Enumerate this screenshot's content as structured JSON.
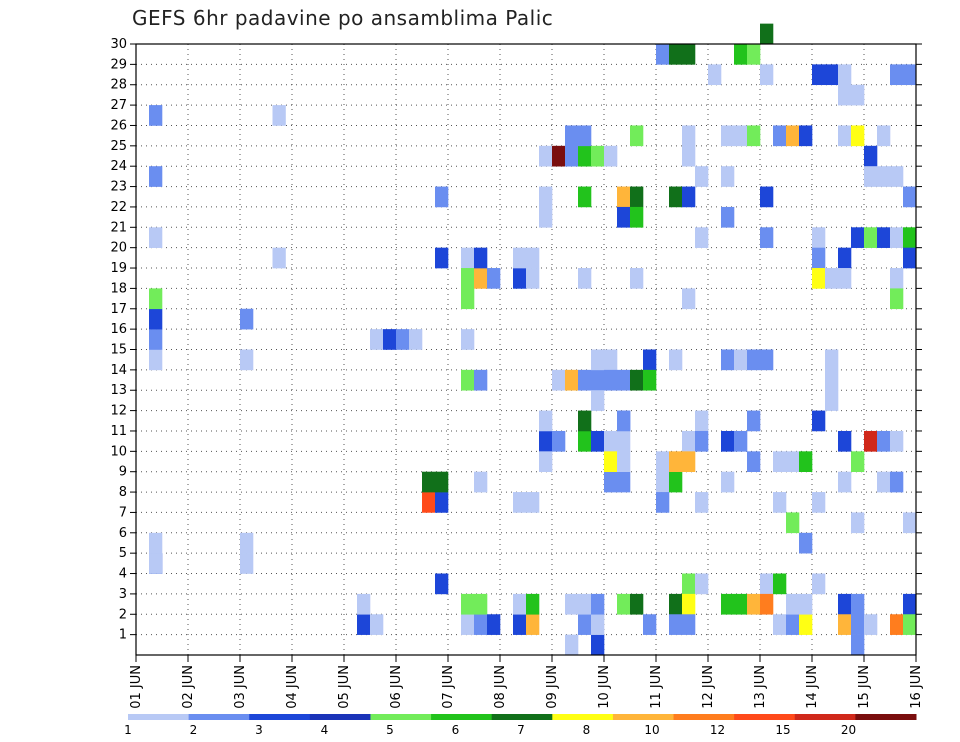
{
  "chart_data": {
    "type": "heatmap",
    "title": "GEFS 6hr padavine po ansamblima Palic",
    "x_tick_labels": [
      "01 JUN",
      "02 JUN",
      "03 JUN",
      "04 JUN",
      "05 JUN",
      "06 JUN",
      "07 JUN",
      "08 JUN",
      "09 JUN",
      "10 JUN",
      "11 JUN",
      "12 JUN",
      "13 JUN",
      "14 JUN",
      "15 JUN",
      "16 JUN"
    ],
    "y_tick_labels": [
      "1",
      "2",
      "3",
      "4",
      "5",
      "6",
      "7",
      "8",
      "9",
      "10",
      "11",
      "12",
      "13",
      "14",
      "15",
      "16",
      "17",
      "18",
      "19",
      "20",
      "21",
      "22",
      "23",
      "24",
      "25",
      "26",
      "27",
      "28",
      "29",
      "30"
    ],
    "xlim": [
      0,
      60
    ],
    "ylim": [
      0,
      30
    ],
    "grid": true,
    "colorbar": {
      "colors": [
        "#b8c9f5",
        "#6a8ef0",
        "#1d46d8",
        "#1a33b8",
        "#72ec5a",
        "#22c31c",
        "#11701a",
        "#ffff14",
        "#ffb53a",
        "#ff7d1e",
        "#ff4a1a",
        "#d0281a",
        "#7a0e0e"
      ],
      "labels": [
        "1",
        "2",
        "3",
        "4",
        "5",
        "6",
        "7",
        "8",
        "10",
        "12",
        "15",
        "20"
      ]
    },
    "cells": [
      [
        1.5,
        4,
        2
      ],
      [
        1.5,
        5,
        0
      ],
      [
        1.5,
        14,
        0
      ],
      [
        1.5,
        15,
        1
      ],
      [
        1.5,
        16,
        2
      ],
      [
        1.5,
        17,
        4
      ],
      [
        1.5,
        20,
        0
      ],
      [
        1.5,
        23,
        1
      ],
      [
        1.5,
        26,
        1
      ],
      [
        1.5,
        4,
        0
      ],
      [
        8.5,
        4,
        0
      ],
      [
        8.5,
        5,
        0
      ],
      [
        8.5,
        14,
        0
      ],
      [
        8.5,
        16,
        1
      ],
      [
        11.0,
        26,
        0
      ],
      [
        11.0,
        19,
        0
      ],
      [
        17.5,
        1,
        2
      ],
      [
        17.5,
        2,
        0
      ],
      [
        18.5,
        1,
        0
      ],
      [
        18.5,
        15,
        0
      ],
      [
        19.5,
        15,
        2
      ],
      [
        20.5,
        15,
        1
      ],
      [
        21.5,
        15,
        0
      ],
      [
        22.5,
        7,
        10
      ],
      [
        22.5,
        8,
        6
      ],
      [
        23.5,
        7,
        2
      ],
      [
        23.5,
        8,
        6
      ],
      [
        23.5,
        3,
        2
      ],
      [
        23.5,
        19,
        2
      ],
      [
        23.5,
        22,
        1
      ],
      [
        25.5,
        1,
        0
      ],
      [
        25.5,
        2,
        4
      ],
      [
        25.5,
        13,
        4
      ],
      [
        25.5,
        15,
        0
      ],
      [
        25.5,
        17,
        4
      ],
      [
        25.5,
        19,
        0
      ],
      [
        25.5,
        18,
        4
      ],
      [
        26.5,
        1,
        1
      ],
      [
        26.5,
        2,
        4
      ],
      [
        26.5,
        8,
        0
      ],
      [
        26.5,
        13,
        1
      ],
      [
        26.5,
        18,
        8
      ],
      [
        26.5,
        19,
        2
      ],
      [
        27.5,
        18,
        1
      ],
      [
        27.5,
        1,
        2
      ],
      [
        29.5,
        1,
        2
      ],
      [
        29.5,
        2,
        0
      ],
      [
        29.5,
        7,
        0
      ],
      [
        29.5,
        18,
        2
      ],
      [
        29.5,
        19,
        0
      ],
      [
        30.5,
        1,
        8
      ],
      [
        30.5,
        2,
        5
      ],
      [
        30.5,
        7,
        0
      ],
      [
        30.5,
        18,
        0
      ],
      [
        30.5,
        19,
        0
      ],
      [
        31.5,
        24,
        0
      ],
      [
        31.5,
        22,
        0
      ],
      [
        31.5,
        10,
        2
      ],
      [
        31.5,
        11,
        0
      ],
      [
        31.5,
        9,
        0
      ],
      [
        31.5,
        21,
        0
      ],
      [
        32.5,
        24,
        12
      ],
      [
        32.5,
        10,
        1
      ],
      [
        32.5,
        13,
        0
      ],
      [
        33.5,
        0,
        0
      ],
      [
        33.5,
        2,
        0
      ],
      [
        33.5,
        24,
        1
      ],
      [
        33.5,
        25,
        1
      ],
      [
        33.5,
        13,
        8
      ],
      [
        34.5,
        1,
        1
      ],
      [
        34.5,
        2,
        0
      ],
      [
        34.5,
        24,
        5
      ],
      [
        34.5,
        25,
        1
      ],
      [
        34.5,
        18,
        0
      ],
      [
        34.5,
        10,
        5
      ],
      [
        34.5,
        11,
        6
      ],
      [
        34.5,
        13,
        1
      ],
      [
        34.5,
        22,
        5
      ],
      [
        35.5,
        0,
        2
      ],
      [
        35.5,
        1,
        0
      ],
      [
        35.5,
        2,
        1
      ],
      [
        35.5,
        10,
        2
      ],
      [
        35.5,
        13,
        1
      ],
      [
        35.5,
        14,
        0
      ],
      [
        35.5,
        24,
        4
      ],
      [
        35.5,
        12,
        0
      ],
      [
        36.5,
        24,
        0
      ],
      [
        36.5,
        10,
        0
      ],
      [
        36.5,
        14,
        0
      ],
      [
        36.5,
        13,
        1
      ],
      [
        36.5,
        8,
        1
      ],
      [
        36.5,
        9,
        7
      ],
      [
        37.5,
        22,
        8
      ],
      [
        37.5,
        21,
        2
      ],
      [
        37.5,
        13,
        1
      ],
      [
        37.5,
        11,
        1
      ],
      [
        37.5,
        10,
        0
      ],
      [
        37.5,
        8,
        1
      ],
      [
        37.5,
        9,
        0
      ],
      [
        37.5,
        2,
        4
      ],
      [
        37.5,
        11,
        1
      ],
      [
        38.5,
        25,
        4
      ],
      [
        38.5,
        22,
        6
      ],
      [
        38.5,
        21,
        5
      ],
      [
        38.5,
        13,
        6
      ],
      [
        38.5,
        18,
        0
      ],
      [
        38.5,
        2,
        6
      ],
      [
        39.5,
        1,
        1
      ],
      [
        39.5,
        14,
        2
      ],
      [
        39.5,
        13,
        5
      ],
      [
        40.5,
        29,
        1
      ],
      [
        40.5,
        8,
        0
      ],
      [
        40.5,
        7,
        1
      ],
      [
        40.5,
        9,
        0
      ],
      [
        41.5,
        29,
        6
      ],
      [
        41.5,
        22,
        6
      ],
      [
        41.5,
        14,
        0
      ],
      [
        41.5,
        8,
        5
      ],
      [
        41.5,
        9,
        8
      ],
      [
        41.5,
        2,
        6
      ],
      [
        41.5,
        1,
        1
      ],
      [
        42.5,
        29,
        6
      ],
      [
        42.5,
        22,
        2
      ],
      [
        42.5,
        25,
        0
      ],
      [
        42.5,
        24,
        0
      ],
      [
        42.5,
        17,
        0
      ],
      [
        42.5,
        10,
        0
      ],
      [
        42.5,
        9,
        8
      ],
      [
        42.5,
        3,
        4
      ],
      [
        42.5,
        2,
        7
      ],
      [
        42.5,
        1,
        1
      ],
      [
        43.5,
        23,
        0
      ],
      [
        43.5,
        20,
        0
      ],
      [
        43.5,
        11,
        0
      ],
      [
        43.5,
        10,
        1
      ],
      [
        43.5,
        7,
        0
      ],
      [
        43.5,
        3,
        0
      ],
      [
        44.5,
        28,
        0
      ],
      [
        45.5,
        23,
        0
      ],
      [
        45.5,
        25,
        0
      ],
      [
        45.5,
        21,
        1
      ],
      [
        45.5,
        14,
        1
      ],
      [
        45.5,
        10,
        2
      ],
      [
        45.5,
        8,
        0
      ],
      [
        45.5,
        2,
        5
      ],
      [
        46.5,
        29,
        5
      ],
      [
        46.5,
        25,
        0
      ],
      [
        46.5,
        14,
        0
      ],
      [
        46.5,
        10,
        1
      ],
      [
        46.5,
        2,
        5
      ],
      [
        47.5,
        29,
        4
      ],
      [
        47.5,
        25,
        4
      ],
      [
        47.5,
        14,
        1
      ],
      [
        47.5,
        11,
        1
      ],
      [
        47.5,
        9,
        1
      ],
      [
        47.5,
        2,
        8
      ],
      [
        48.5,
        30,
        6
      ],
      [
        48.5,
        28,
        0
      ],
      [
        48.5,
        20,
        1
      ],
      [
        48.5,
        22,
        2
      ],
      [
        48.5,
        14,
        1
      ],
      [
        48.5,
        3,
        0
      ],
      [
        48.5,
        2,
        9
      ],
      [
        49.5,
        25,
        1
      ],
      [
        49.5,
        9,
        0
      ],
      [
        49.5,
        7,
        0
      ],
      [
        49.5,
        3,
        5
      ],
      [
        49.5,
        1,
        0
      ],
      [
        50.5,
        25,
        8
      ],
      [
        50.5,
        9,
        0
      ],
      [
        50.5,
        6,
        4
      ],
      [
        50.5,
        1,
        1
      ],
      [
        50.5,
        2,
        0
      ],
      [
        51.5,
        25,
        2
      ],
      [
        51.5,
        9,
        5
      ],
      [
        51.5,
        5,
        1
      ],
      [
        51.5,
        1,
        7
      ],
      [
        51.5,
        2,
        0
      ],
      [
        52.5,
        28,
        2
      ],
      [
        52.5,
        20,
        0
      ],
      [
        52.5,
        19,
        1
      ],
      [
        52.5,
        18,
        7
      ],
      [
        52.5,
        11,
        2
      ],
      [
        52.5,
        7,
        0
      ],
      [
        52.5,
        3,
        0
      ],
      [
        53.5,
        28,
        2
      ],
      [
        53.5,
        18,
        0
      ],
      [
        53.5,
        14,
        0
      ],
      [
        53.5,
        13,
        0
      ],
      [
        53.5,
        12,
        0
      ],
      [
        54.5,
        27,
        0
      ],
      [
        54.5,
        28,
        0
      ],
      [
        54.5,
        25,
        0
      ],
      [
        54.5,
        19,
        2
      ],
      [
        54.5,
        18,
        0
      ],
      [
        54.5,
        10,
        2
      ],
      [
        54.5,
        8,
        0
      ],
      [
        54.5,
        2,
        2
      ],
      [
        54.5,
        1,
        8
      ],
      [
        55.5,
        27,
        0
      ],
      [
        55.5,
        25,
        7
      ],
      [
        55.5,
        20,
        2
      ],
      [
        55.5,
        9,
        4
      ],
      [
        55.5,
        6,
        0
      ],
      [
        55.5,
        2,
        1
      ],
      [
        55.5,
        1,
        1
      ],
      [
        55.5,
        0,
        1
      ],
      [
        56.5,
        24,
        2
      ],
      [
        56.5,
        23,
        0
      ],
      [
        56.5,
        20,
        4
      ],
      [
        56.5,
        10,
        11
      ],
      [
        56.5,
        1,
        0
      ],
      [
        57.5,
        23,
        0
      ],
      [
        57.5,
        20,
        2
      ],
      [
        57.5,
        25,
        0
      ],
      [
        57.5,
        10,
        1
      ],
      [
        57.5,
        8,
        0
      ],
      [
        58.5,
        28,
        1
      ],
      [
        58.5,
        23,
        0
      ],
      [
        58.5,
        20,
        0
      ],
      [
        58.5,
        18,
        0
      ],
      [
        58.5,
        17,
        4
      ],
      [
        58.5,
        10,
        0
      ],
      [
        58.5,
        8,
        1
      ],
      [
        58.5,
        1,
        9
      ],
      [
        59.5,
        28,
        1
      ],
      [
        59.5,
        22,
        1
      ],
      [
        59.5,
        20,
        5
      ],
      [
        59.5,
        19,
        2
      ],
      [
        59.5,
        6,
        0
      ],
      [
        59.5,
        2,
        2
      ],
      [
        59.5,
        1,
        4
      ]
    ]
  }
}
